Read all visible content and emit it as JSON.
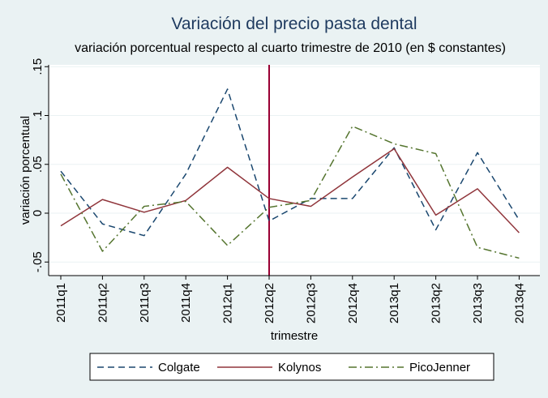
{
  "chart_data": {
    "type": "line",
    "title": "Variación del precio pasta dental",
    "subtitle": "variación porcentual respecto al cuarto trimestre de 2010 (en $ constantes)",
    "xlabel": "trimestre",
    "ylabel": "variación porcentual",
    "categories": [
      "2011q1",
      "2011q2",
      "2011q3",
      "2011q4",
      "2012q1",
      "2012q2",
      "2012q3",
      "2012q4",
      "2013q1",
      "2013q2",
      "2013q3",
      "2013q4"
    ],
    "ylim": [
      -0.05,
      0.15
    ],
    "yticks": [
      -0.05,
      0,
      0.05,
      0.1,
      0.15
    ],
    "ytick_labels": [
      "-.05",
      "0",
      ".05",
      ".1",
      ".15"
    ],
    "grid": "horizontal",
    "reference_line": {
      "x": "2012q2",
      "color": "#990033"
    },
    "legend_position": "bottom",
    "series": [
      {
        "name": "Colgate",
        "color": "#1a476f",
        "style": "dashed",
        "values": [
          0.043,
          -0.011,
          -0.023,
          0.04,
          0.127,
          -0.008,
          0.015,
          0.015,
          0.067,
          -0.017,
          0.062,
          -0.007
        ]
      },
      {
        "name": "Kolynos",
        "color": "#90353b",
        "style": "solid",
        "values": [
          -0.013,
          0.014,
          0.001,
          0.013,
          0.047,
          0.015,
          0.007,
          0.037,
          0.066,
          -0.002,
          0.025,
          -0.02
        ]
      },
      {
        "name": "PicoJenner",
        "color": "#55752f",
        "style": "dashdot",
        "values": [
          0.04,
          -0.039,
          0.007,
          0.012,
          -0.033,
          0.006,
          0.013,
          0.089,
          0.071,
          0.061,
          -0.035,
          -0.046
        ]
      }
    ]
  }
}
